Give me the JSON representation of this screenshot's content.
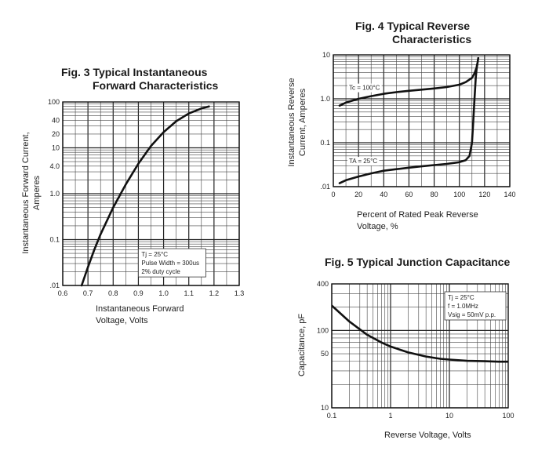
{
  "chart_data": [
    {
      "id": "fig3",
      "type": "line",
      "title_lines": [
        "Fig. 3 Typical Instantaneous",
        "Forward Characteristics"
      ],
      "xlabel_lines": [
        "Instantaneous Forward",
        "Voltage, Volts"
      ],
      "ylabel_lines": [
        "Instantaneous Forward Current,",
        "Amperes"
      ],
      "xscale": "linear",
      "yscale": "log",
      "xlim": [
        0.6,
        1.3
      ],
      "ylim": [
        0.01,
        100
      ],
      "xticks": [
        0.6,
        0.7,
        0.8,
        0.9,
        1.0,
        1.1,
        1.2,
        1.3
      ],
      "xtick_labels": [
        "0.6",
        "0.7",
        "0.8",
        "0.9",
        "1.0",
        "1.1",
        "1.2",
        "1.3"
      ],
      "yticks": [
        0.01,
        0.1,
        1,
        4,
        10,
        20,
        40,
        100
      ],
      "ytick_labels": [
        ".01",
        "0.1",
        "1.0",
        "4.0",
        "10",
        "20",
        "40",
        "100"
      ],
      "grid": true,
      "series": [
        {
          "x": [
            0.675,
            0.7,
            0.725,
            0.75,
            0.8,
            0.85,
            0.9,
            0.95,
            1.0,
            1.05,
            1.1,
            1.15,
            1.18
          ],
          "y": [
            0.01,
            0.025,
            0.06,
            0.13,
            0.5,
            1.6,
            4.5,
            11,
            22,
            38,
            56,
            72,
            80
          ]
        }
      ],
      "annotation_lines": [
        "Tj = 25°C",
        "Pulse Width = 300us",
        "2% duty cycle"
      ],
      "annotation_position": "lower-right"
    },
    {
      "id": "fig4",
      "type": "line",
      "title_lines": [
        "Fig. 4 Typical Reverse",
        "Characteristics"
      ],
      "xlabel_lines": [
        "Percent of Rated Peak Reverse",
        "Voltage, %"
      ],
      "ylabel_lines": [
        "Instantaneous Reverse",
        "Current, Amperes"
      ],
      "xscale": "linear",
      "yscale": "log",
      "xlim": [
        0,
        140
      ],
      "ylim": [
        0.01,
        10
      ],
      "xticks": [
        0,
        20,
        40,
        60,
        80,
        100,
        120,
        140
      ],
      "xtick_labels": [
        "0",
        "20",
        "40",
        "60",
        "80",
        "100",
        "120",
        "140"
      ],
      "yticks": [
        0.01,
        0.1,
        1,
        10
      ],
      "ytick_labels": [
        ".01",
        "0.1",
        "1.0",
        "10"
      ],
      "grid": true,
      "series": [
        {
          "name": "Tc = 100°C",
          "x": [
            5,
            10,
            20,
            30,
            40,
            50,
            60,
            70,
            80,
            90,
            100,
            105,
            110,
            112,
            114,
            115
          ],
          "y": [
            0.7,
            0.82,
            1.0,
            1.15,
            1.3,
            1.42,
            1.52,
            1.62,
            1.72,
            1.85,
            2.1,
            2.4,
            3.0,
            3.8,
            5.5,
            8.5
          ]
        },
        {
          "name": "TA = 25°C",
          "x": [
            5,
            10,
            20,
            30,
            40,
            50,
            60,
            70,
            80,
            90,
            100,
            105,
            108,
            110,
            111,
            112,
            113,
            114
          ],
          "y": [
            0.012,
            0.014,
            0.017,
            0.02,
            0.023,
            0.025,
            0.027,
            0.029,
            0.031,
            0.033,
            0.036,
            0.04,
            0.05,
            0.1,
            0.3,
            1.0,
            3.0,
            6.0
          ]
        }
      ]
    },
    {
      "id": "fig5",
      "type": "line",
      "title_lines": [
        "Fig. 5 Typical Junction Capacitance"
      ],
      "xlabel_lines": [
        "Reverse Voltage, Volts"
      ],
      "ylabel_lines": [
        "Capacitance, pF"
      ],
      "xscale": "log",
      "yscale": "log",
      "xlim": [
        0.1,
        100
      ],
      "ylim": [
        10,
        400
      ],
      "xticks": [
        0.1,
        1,
        10,
        100
      ],
      "xtick_labels": [
        "0.1",
        "1",
        "10",
        "100"
      ],
      "yticks": [
        10,
        50,
        100,
        400
      ],
      "ytick_labels": [
        "10",
        "50",
        "100",
        "400"
      ],
      "grid": true,
      "series": [
        {
          "x": [
            0.1,
            0.2,
            0.4,
            0.7,
            1,
            2,
            4,
            7,
            10,
            20,
            40,
            70,
            100
          ],
          "y": [
            210,
            130,
            88,
            70,
            62,
            52,
            46,
            43,
            42,
            40.5,
            40,
            39.5,
            39.5
          ]
        }
      ],
      "annotation_lines": [
        "Tj = 25°C",
        "f = 1.0MHz",
        "Vsig = 50mV p.p."
      ],
      "annotation_position": "upper-right"
    }
  ]
}
